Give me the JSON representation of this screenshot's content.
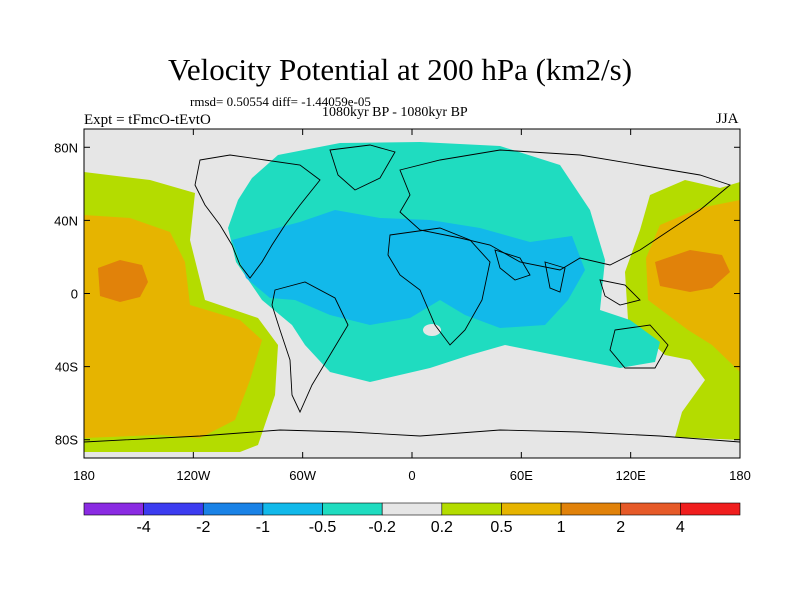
{
  "title": "Velocity Potential at 200 hPa (km2/s)",
  "stats": "rmsd= 0.50554 diff= -1.44059e-05",
  "period": "1080kyr BP - 1080kyr BP",
  "experiment": "Expt = tFmcO-tEvtO",
  "season": "JJA",
  "map": {
    "projection": "cylindrical-equidistant",
    "lon_range": [
      -180,
      180
    ],
    "lat_range": [
      -90,
      90
    ],
    "background_color": "#e6e6e6",
    "x_ticks": [
      {
        "lon": -180,
        "label": "180"
      },
      {
        "lon": -120,
        "label": "120W"
      },
      {
        "lon": -60,
        "label": "60W"
      },
      {
        "lon": 0,
        "label": "0"
      },
      {
        "lon": 60,
        "label": "60E"
      },
      {
        "lon": 120,
        "label": "120E"
      },
      {
        "lon": 180,
        "label": "180"
      }
    ],
    "y_ticks": [
      {
        "lat": 80,
        "label": "80N"
      },
      {
        "lat": 40,
        "label": "40N"
      },
      {
        "lat": 0,
        "label": "0"
      },
      {
        "lat": -40,
        "label": "40S"
      },
      {
        "lat": -80,
        "label": "80S"
      }
    ]
  },
  "colorbar": {
    "colors": [
      "#8a2be2",
      "#3c3cf0",
      "#1a82e6",
      "#12b9ea",
      "#1fdcc0",
      "#e6e6e6",
      "#b4dc00",
      "#e6b400",
      "#e1820a",
      "#e65a28",
      "#f01e1e"
    ],
    "labels": [
      "-4",
      "-2",
      "-1",
      "-0.5",
      "-0.2",
      "0.2",
      "0.5",
      "1",
      "2",
      "4"
    ]
  },
  "fields": [
    {
      "name": "negative-region-teal",
      "color": "#1fdcc0"
    },
    {
      "name": "negative-core-blue",
      "color": "#12b9ea"
    },
    {
      "name": "positive-region-green",
      "color": "#b4dc00"
    },
    {
      "name": "positive-region-yellow",
      "color": "#e6b400"
    },
    {
      "name": "positive-core-orange",
      "color": "#e1820a"
    }
  ]
}
